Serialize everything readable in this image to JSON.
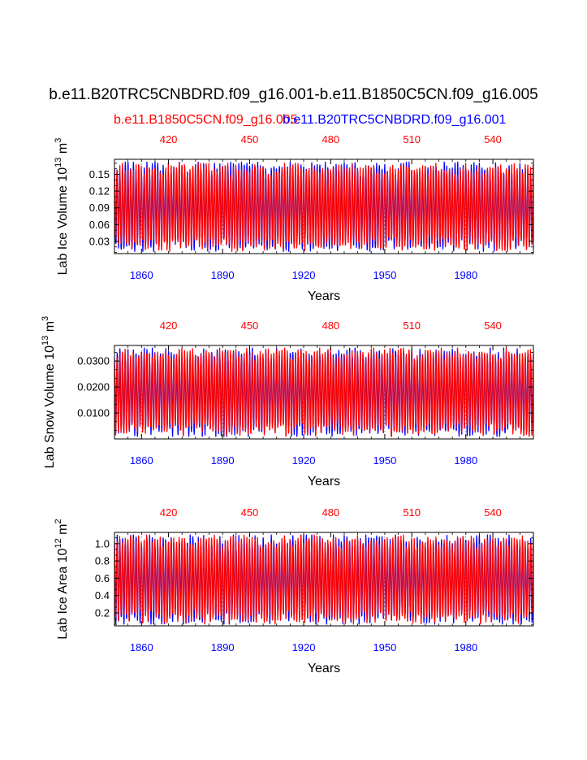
{
  "title": "b.e11.B20TRC5CNBDRD.f09_g16.001-b.e11.B1850C5CN.f09_g16.005",
  "legend": {
    "red": "b.e11.B1850C5CN.f09_g16.005",
    "blue": "b.e11.B20TRC5CNBDRD.f09_g16.001"
  },
  "colors": {
    "red": "#ff0000",
    "blue": "#0000ff",
    "axis": "#000000",
    "grid": "#888888"
  },
  "chart_data": [
    {
      "type": "line",
      "ylabel": "Lab Ice Volume",
      "yunit": "10^13 m^3",
      "ylabel_base": "Lab Ice Volume 10",
      "ylabel_exp": "13",
      "ylabel_unit": " m",
      "ylabel_unit_exp": "3",
      "xlabel": "Years",
      "ylim": [
        0.008,
        0.177
      ],
      "yticks": [
        0.03,
        0.06,
        0.09,
        0.12,
        0.15
      ],
      "ytick_labels": [
        "0.03",
        "0.06",
        "0.09",
        "0.12",
        "0.15"
      ],
      "xlim_bottom": [
        1850,
        2005
      ],
      "xticks_bottom": [
        1860,
        1890,
        1920,
        1950,
        1980
      ],
      "xlim_top": [
        400,
        555
      ],
      "xticks_top": [
        420,
        450,
        480,
        510,
        540
      ],
      "series_profile": {
        "red": {
          "min": 0.012,
          "max": 0.17
        },
        "blue": {
          "min": 0.012,
          "max": 0.172
        }
      },
      "series": [
        {
          "name": "b.e11.B20TRC5CNBDRD.f09_g16.001",
          "color": "blue",
          "axis": "bottom",
          "x_range": [
            1850,
            2005
          ],
          "cycle": "annual",
          "min": 0.012,
          "max": 0.172
        },
        {
          "name": "b.e11.B1850C5CN.f09_g16.005",
          "color": "red",
          "axis": "top",
          "x_range": [
            400,
            555
          ],
          "cycle": "annual",
          "min": 0.012,
          "max": 0.17
        }
      ]
    },
    {
      "type": "line",
      "ylabel": "Lab Snow Volume",
      "yunit": "10^13 m^3",
      "ylabel_base": "Lab Snow Volume 10",
      "ylabel_exp": "13",
      "ylabel_unit": " m",
      "ylabel_unit_exp": "3",
      "xlabel": "Years",
      "ylim": [
        0.0,
        0.036
      ],
      "yticks": [
        0.01,
        0.02,
        0.03
      ],
      "ytick_labels": [
        "0.0100",
        "0.0200",
        "0.0300"
      ],
      "xlim_bottom": [
        1850,
        2005
      ],
      "xticks_bottom": [
        1860,
        1890,
        1920,
        1950,
        1980
      ],
      "xlim_top": [
        400,
        555
      ],
      "xticks_top": [
        420,
        450,
        480,
        510,
        540
      ],
      "series": [
        {
          "name": "b.e11.B20TRC5CNBDRD.f09_g16.001",
          "color": "blue",
          "axis": "bottom",
          "x_range": [
            1850,
            2005
          ],
          "cycle": "annual",
          "min": 0.001,
          "max": 0.035
        },
        {
          "name": "b.e11.B1850C5CN.f09_g16.005",
          "color": "red",
          "axis": "top",
          "x_range": [
            400,
            555
          ],
          "cycle": "annual",
          "min": 0.001,
          "max": 0.035
        }
      ]
    },
    {
      "type": "line",
      "ylabel": "Lab Ice Area",
      "yunit": "10^12 m^2",
      "ylabel_base": "Lab Ice Area 10",
      "ylabel_exp": "12",
      "ylabel_unit": " m",
      "ylabel_unit_exp": "2",
      "xlabel": "Years",
      "ylim": [
        0.05,
        1.13
      ],
      "yticks": [
        0.2,
        0.4,
        0.6,
        0.8,
        1.0
      ],
      "ytick_labels": [
        "0.2",
        "0.4",
        "0.6",
        "0.8",
        "1.0"
      ],
      "xlim_bottom": [
        1850,
        2005
      ],
      "xticks_bottom": [
        1860,
        1890,
        1920,
        1950,
        1980
      ],
      "xlim_top": [
        400,
        555
      ],
      "xticks_top": [
        420,
        450,
        480,
        510,
        540
      ],
      "series": [
        {
          "name": "b.e11.B20TRC5CNBDRD.f09_g16.001",
          "color": "blue",
          "axis": "bottom",
          "x_range": [
            1850,
            2005
          ],
          "cycle": "annual",
          "min": 0.07,
          "max": 1.1
        },
        {
          "name": "b.e11.B1850C5CN.f09_g16.005",
          "color": "red",
          "axis": "top",
          "x_range": [
            400,
            555
          ],
          "cycle": "annual",
          "min": 0.07,
          "max": 1.1
        }
      ]
    }
  ]
}
